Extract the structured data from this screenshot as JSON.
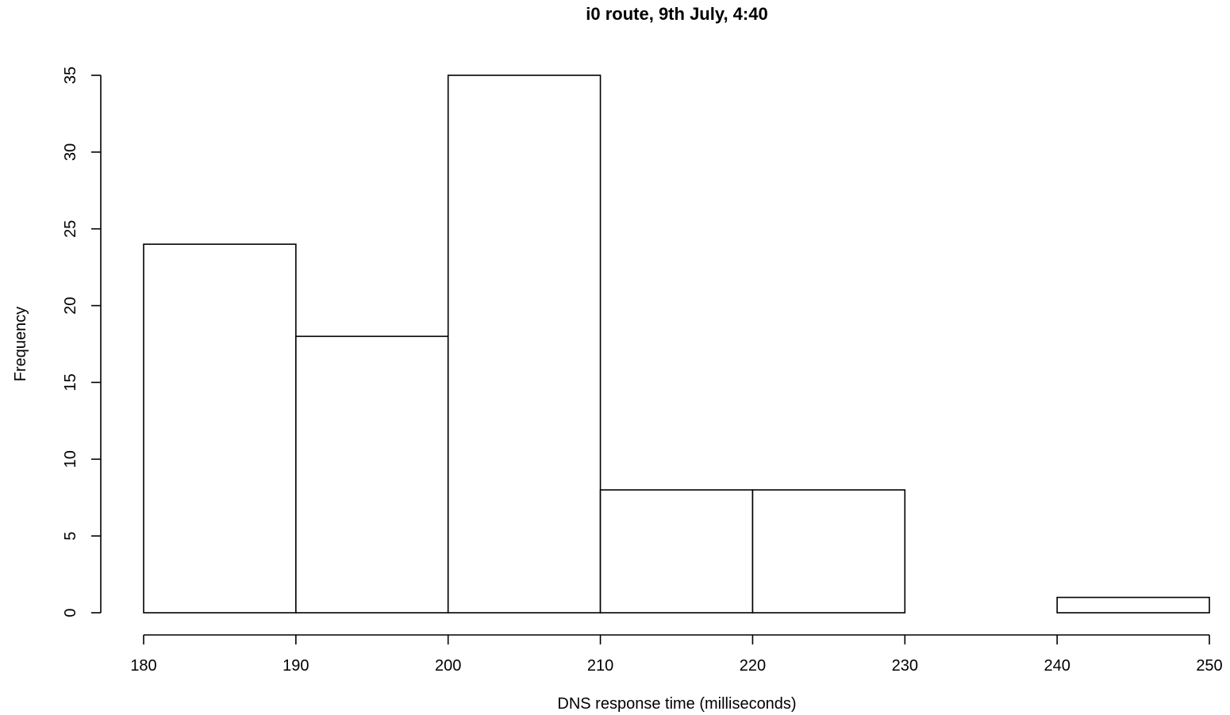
{
  "chart_data": {
    "type": "bar",
    "subtype": "histogram",
    "title": "i0 route, 9th July, 4:40",
    "xlabel": "DNS response time (milliseconds)",
    "ylabel": "Frequency",
    "bins": [
      {
        "start": 180,
        "end": 190,
        "count": 24
      },
      {
        "start": 190,
        "end": 200,
        "count": 18
      },
      {
        "start": 200,
        "end": 210,
        "count": 35
      },
      {
        "start": 210,
        "end": 220,
        "count": 8
      },
      {
        "start": 220,
        "end": 230,
        "count": 8
      },
      {
        "start": 230,
        "end": 240,
        "count": 0
      },
      {
        "start": 240,
        "end": 250,
        "count": 1
      }
    ],
    "xlim": [
      180,
      250
    ],
    "ylim": [
      0,
      35
    ],
    "x_ticks": [
      180,
      190,
      200,
      210,
      220,
      230,
      240,
      250
    ],
    "y_ticks": [
      0,
      5,
      10,
      15,
      20,
      25,
      30,
      35
    ],
    "grid": false,
    "legend": "none",
    "colors": {
      "bar_fill": "#ffffff",
      "bar_stroke": "#000000"
    }
  }
}
